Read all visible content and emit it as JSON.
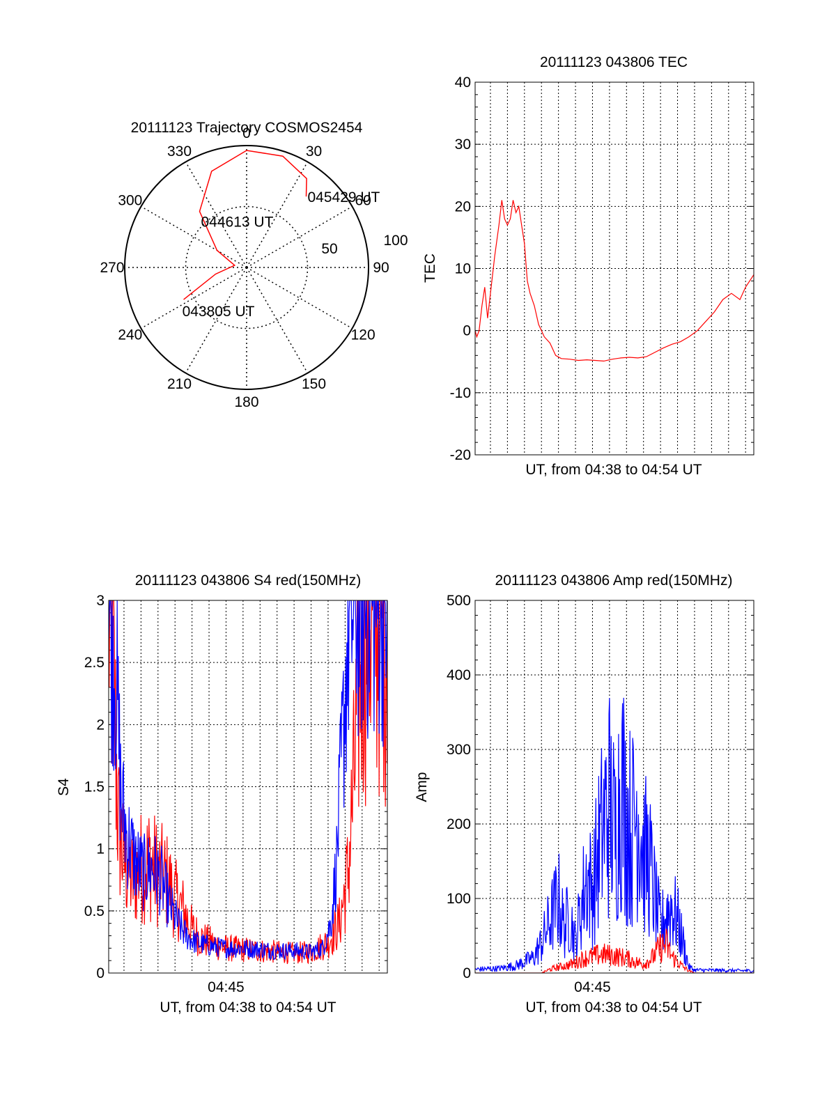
{
  "colors": {
    "red": "#ff0000",
    "blue": "#0000ff",
    "axis": "#000000",
    "grid": "#000000"
  },
  "chart_data": [
    {
      "id": "polar",
      "type": "polar",
      "title": "20111123 Trajectory COSMOS2454",
      "angle_labels": [
        "0",
        "30",
        "60",
        "90",
        "120",
        "150",
        "180",
        "210",
        "240",
        "270",
        "300",
        "330"
      ],
      "radius_labels": [
        "50",
        "100"
      ],
      "elevation_rings": [
        50
      ],
      "trajectory": [
        {
          "az": 243,
          "el": 29
        },
        {
          "az": 258,
          "el": 13
        },
        {
          "az": 280,
          "el": 5
        },
        {
          "az": 300,
          "el": 14
        },
        {
          "az": 320,
          "el": 30
        },
        {
          "az": 340,
          "el": 42
        },
        {
          "az": 360,
          "el": 48
        },
        {
          "az": 18,
          "el": 48
        },
        {
          "az": 34,
          "el": 44
        },
        {
          "az": 40,
          "el": 38
        }
      ],
      "annotations": [
        {
          "text": "045429 UT",
          "az": 40,
          "el": 38
        },
        {
          "text": "044613 UT",
          "az": 320,
          "el": 30
        },
        {
          "text": "043805 UT",
          "az": 243,
          "el": 29
        }
      ]
    },
    {
      "id": "tec",
      "type": "line",
      "title": "20111123 043806 TEC",
      "xlabel": "UT, from 04:38 to 04:54 UT",
      "ylabel": "TEC",
      "ylim": [
        -20,
        40
      ],
      "yticks": [
        "40",
        "30",
        "20",
        "10",
        "0",
        "-10",
        "-20"
      ],
      "xlim": [
        "04:38:06",
        "04:54:29"
      ],
      "series": [
        {
          "color": "red",
          "points": [
            [
              "04:38:06",
              0
            ],
            [
              "04:38:12",
              -1
            ],
            [
              "04:38:20",
              0
            ],
            [
              "04:38:30",
              4
            ],
            [
              "04:38:40",
              7
            ],
            [
              "04:38:50",
              2
            ],
            [
              "04:39:00",
              6
            ],
            [
              "04:39:15",
              12
            ],
            [
              "04:39:30",
              17
            ],
            [
              "04:39:40",
              21
            ],
            [
              "04:39:50",
              18
            ],
            [
              "04:40:00",
              17
            ],
            [
              "04:40:10",
              18
            ],
            [
              "04:40:20",
              21
            ],
            [
              "04:40:30",
              19
            ],
            [
              "04:40:40",
              20
            ],
            [
              "04:40:50",
              17
            ],
            [
              "04:41:00",
              14
            ],
            [
              "04:41:10",
              8
            ],
            [
              "04:41:20",
              6
            ],
            [
              "04:41:35",
              4
            ],
            [
              "04:41:50",
              1
            ],
            [
              "04:42:10",
              -1
            ],
            [
              "04:42:30",
              -2
            ],
            [
              "04:42:50",
              -4
            ],
            [
              "04:43:10",
              -4.5
            ],
            [
              "04:43:40",
              -4.6
            ],
            [
              "04:44:10",
              -4.8
            ],
            [
              "04:44:40",
              -4.7
            ],
            [
              "04:45:10",
              -4.8
            ],
            [
              "04:45:40",
              -4.9
            ],
            [
              "04:46:10",
              -4.6
            ],
            [
              "04:46:40",
              -4.4
            ],
            [
              "04:47:10",
              -4.3
            ],
            [
              "04:47:40",
              -4.4
            ],
            [
              "04:48:10",
              -4.2
            ],
            [
              "04:48:40",
              -3.5
            ],
            [
              "04:49:10",
              -2.8
            ],
            [
              "04:49:40",
              -2.2
            ],
            [
              "04:50:10",
              -1.8
            ],
            [
              "04:50:40",
              -1.0
            ],
            [
              "04:51:10",
              0
            ],
            [
              "04:51:40",
              1.5
            ],
            [
              "04:52:10",
              3
            ],
            [
              "04:52:40",
              5
            ],
            [
              "04:53:10",
              6
            ],
            [
              "04:53:40",
              5
            ],
            [
              "04:54:00",
              7
            ],
            [
              "04:54:29",
              9
            ]
          ]
        }
      ]
    },
    {
      "id": "s4",
      "type": "line",
      "title": "20111123 043806 S4 red(150MHz)",
      "xlabel": "UT, from 04:38 to 04:54 UT",
      "ylabel": "S4",
      "ylim": [
        0,
        3
      ],
      "yticks": [
        "3",
        "2.5",
        "2",
        "1.5",
        "1",
        "0.5",
        "0"
      ],
      "xlim": [
        "04:38:06",
        "04:54:29"
      ],
      "xticks": [
        {
          "t": "04:45:00",
          "label": "04:45"
        }
      ],
      "series": [
        {
          "color": "red",
          "noise": 0.35,
          "points": [
            [
              "04:38:06",
              3
            ],
            [
              "04:38:20",
              2.6
            ],
            [
              "04:38:40",
              1.2
            ],
            [
              "04:39:00",
              0.9
            ],
            [
              "04:39:30",
              0.75
            ],
            [
              "04:40:00",
              0.85
            ],
            [
              "04:40:30",
              0.9
            ],
            [
              "04:41:00",
              0.8
            ],
            [
              "04:41:30",
              0.75
            ],
            [
              "04:42:00",
              0.6
            ],
            [
              "04:42:30",
              0.5
            ],
            [
              "04:43:00",
              0.35
            ],
            [
              "04:43:30",
              0.28
            ],
            [
              "04:44:00",
              0.25
            ],
            [
              "04:44:30",
              0.22
            ],
            [
              "04:45:00",
              0.2
            ],
            [
              "04:46:00",
              0.19
            ],
            [
              "04:47:00",
              0.18
            ],
            [
              "04:48:00",
              0.17
            ],
            [
              "04:49:00",
              0.16
            ],
            [
              "04:50:00",
              0.17
            ],
            [
              "04:51:00",
              0.25
            ],
            [
              "04:51:40",
              0.4
            ],
            [
              "04:52:10",
              0.8
            ],
            [
              "04:52:30",
              1.5
            ],
            [
              "04:52:50",
              2.4
            ],
            [
              "04:53:10",
              3
            ],
            [
              "04:54:29",
              3
            ]
          ]
        },
        {
          "color": "blue",
          "noise": 0.25,
          "points": [
            [
              "04:38:06",
              3
            ],
            [
              "04:38:30",
              2.5
            ],
            [
              "04:38:50",
              1.4
            ],
            [
              "04:39:10",
              1.1
            ],
            [
              "04:39:40",
              0.9
            ],
            [
              "04:40:10",
              0.8
            ],
            [
              "04:40:40",
              0.85
            ],
            [
              "04:41:10",
              0.75
            ],
            [
              "04:41:40",
              0.55
            ],
            [
              "04:42:10",
              0.4
            ],
            [
              "04:42:40",
              0.3
            ],
            [
              "04:43:10",
              0.25
            ],
            [
              "04:44:00",
              0.22
            ],
            [
              "04:45:00",
              0.2
            ],
            [
              "04:46:00",
              0.2
            ],
            [
              "04:47:00",
              0.19
            ],
            [
              "04:48:00",
              0.18
            ],
            [
              "04:49:00",
              0.18
            ],
            [
              "04:50:00",
              0.17
            ],
            [
              "04:50:40",
              0.2
            ],
            [
              "04:51:10",
              0.4
            ],
            [
              "04:51:30",
              0.9
            ],
            [
              "04:51:50",
              1.8
            ],
            [
              "04:52:10",
              2.7
            ],
            [
              "04:52:30",
              3
            ],
            [
              "04:54:29",
              3
            ]
          ]
        }
      ]
    },
    {
      "id": "amp",
      "type": "line",
      "title": "20111123 043806 Amp red(150MHz)",
      "xlabel": "UT, from 04:38 to 04:54 UT",
      "ylabel": "Amp",
      "ylim": [
        0,
        500
      ],
      "yticks": [
        "500",
        "400",
        "300",
        "200",
        "100",
        "0"
      ],
      "xlim": [
        "04:38:06",
        "04:54:29"
      ],
      "xticks": [
        {
          "t": "04:45:00",
          "label": "04:45"
        }
      ],
      "series": [
        {
          "color": "blue",
          "noise": 0.45,
          "points": [
            [
              "04:38:06",
              5
            ],
            [
              "04:39:30",
              6
            ],
            [
              "04:40:30",
              10
            ],
            [
              "04:41:30",
              20
            ],
            [
              "04:42:00",
              40
            ],
            [
              "04:42:30",
              70
            ],
            [
              "04:43:00",
              100
            ],
            [
              "04:43:20",
              60
            ],
            [
              "04:43:40",
              80
            ],
            [
              "04:44:00",
              40
            ],
            [
              "04:44:20",
              90
            ],
            [
              "04:44:40",
              130
            ],
            [
              "04:45:00",
              110
            ],
            [
              "04:45:20",
              160
            ],
            [
              "04:45:40",
              200
            ],
            [
              "04:46:00",
              230
            ],
            [
              "04:46:20",
              180
            ],
            [
              "04:46:40",
              260
            ],
            [
              "04:47:00",
              210
            ],
            [
              "04:47:20",
              190
            ],
            [
              "04:47:40",
              230
            ],
            [
              "04:48:00",
              160
            ],
            [
              "04:48:20",
              150
            ],
            [
              "04:48:40",
              100
            ],
            [
              "04:49:00",
              60
            ],
            [
              "04:49:20",
              80
            ],
            [
              "04:49:40",
              90
            ],
            [
              "04:50:00",
              70
            ],
            [
              "04:50:20",
              40
            ],
            [
              "04:50:40",
              8
            ],
            [
              "04:51:00",
              4
            ],
            [
              "04:54:29",
              3
            ]
          ]
        },
        {
          "color": "red",
          "noise": 0.4,
          "points": [
            [
              "04:38:06",
              0
            ],
            [
              "04:42:00",
              0
            ],
            [
              "04:42:30",
              5
            ],
            [
              "04:43:00",
              8
            ],
            [
              "04:43:30",
              10
            ],
            [
              "04:44:00",
              14
            ],
            [
              "04:44:30",
              20
            ],
            [
              "04:45:00",
              22
            ],
            [
              "04:45:30",
              25
            ],
            [
              "04:46:00",
              24
            ],
            [
              "04:46:30",
              22
            ],
            [
              "04:47:00",
              20
            ],
            [
              "04:47:30",
              15
            ],
            [
              "04:48:00",
              12
            ],
            [
              "04:48:30",
              20
            ],
            [
              "04:49:00",
              35
            ],
            [
              "04:49:20",
              38
            ],
            [
              "04:49:40",
              22
            ],
            [
              "04:50:00",
              15
            ],
            [
              "04:50:20",
              8
            ],
            [
              "04:50:40",
              3
            ],
            [
              "04:51:00",
              0
            ],
            [
              "04:54:29",
              0
            ]
          ]
        }
      ]
    }
  ]
}
